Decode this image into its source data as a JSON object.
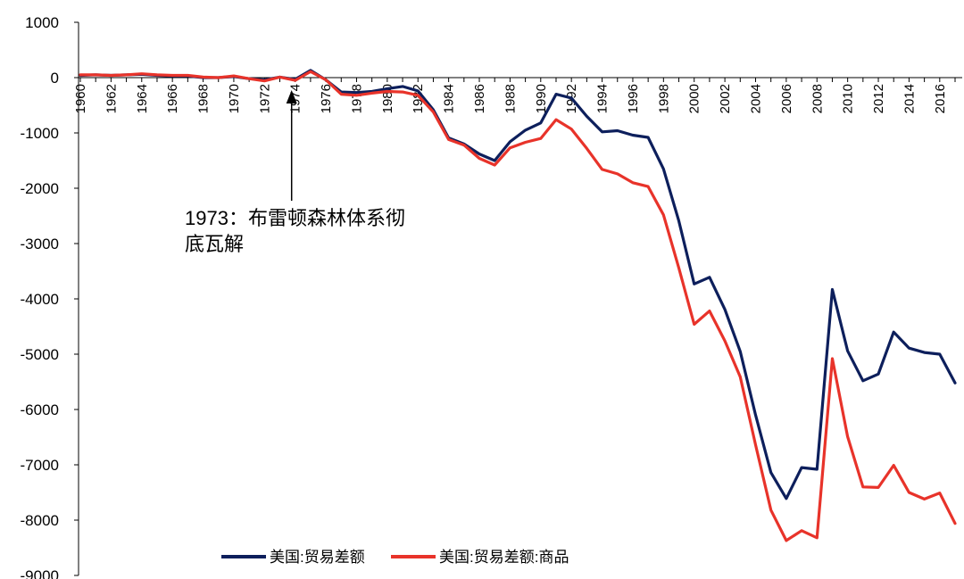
{
  "chart_data": {
    "type": "line",
    "x": [
      1960,
      1961,
      1962,
      1963,
      1964,
      1965,
      1966,
      1967,
      1968,
      1969,
      1970,
      1971,
      1972,
      1973,
      1974,
      1975,
      1976,
      1977,
      1978,
      1979,
      1980,
      1981,
      1982,
      1983,
      1984,
      1985,
      1986,
      1987,
      1988,
      1989,
      1990,
      1991,
      1992,
      1993,
      1994,
      1995,
      1996,
      1997,
      1998,
      1999,
      2000,
      2001,
      2002,
      2003,
      2004,
      2005,
      2006,
      2007,
      2008,
      2009,
      2010,
      2011,
      2012,
      2013,
      2014,
      2015,
      2016,
      2017
    ],
    "x_tick_labels": [
      "1960",
      "1962",
      "1964",
      "1966",
      "1968",
      "1970",
      "1972",
      "1974",
      "1976",
      "1978",
      "1980",
      "1982",
      "1984",
      "1986",
      "1988",
      "1990",
      "1992",
      "1994",
      "1996",
      "1998",
      "2000",
      "2002",
      "2004",
      "2006",
      "2008",
      "2010",
      "2012",
      "2014",
      "2016"
    ],
    "ylim": [
      -9000,
      1000
    ],
    "y_ticks": [
      1000,
      0,
      -1000,
      -2000,
      -3000,
      -4000,
      -5000,
      -6000,
      -7000,
      -8000,
      -9000
    ],
    "y_tick_labels": [
      "1000",
      "0",
      "-1000",
      "-2000",
      "-3000",
      "-4000",
      "-5000",
      "-6000",
      "-7000",
      "-8000",
      "-9000"
    ],
    "grid": false,
    "legend_position": "bottom",
    "series": [
      {
        "name": "美国:贸易差额",
        "color": "#0d1f5c",
        "values": [
          40,
          50,
          40,
          50,
          60,
          40,
          30,
          30,
          0,
          0,
          20,
          -20,
          -40,
          10,
          -30,
          130,
          -40,
          -260,
          -270,
          -250,
          -200,
          -160,
          -240,
          -580,
          -1090,
          -1200,
          -1380,
          -1500,
          -1160,
          -950,
          -820,
          -300,
          -370,
          -700,
          -980,
          -960,
          -1040,
          -1080,
          -1650,
          -2590,
          -3730,
          -3610,
          -4190,
          -4950,
          -6100,
          -7140,
          -7610,
          -7050,
          -7080,
          -3830,
          -4940,
          -5480,
          -5360,
          -4600,
          -4890,
          -4970,
          -5000,
          -5520
        ]
      },
      {
        "name": "美国:贸易差额:商品",
        "color": "#e8332a",
        "values": [
          50,
          50,
          40,
          50,
          70,
          50,
          40,
          40,
          10,
          0,
          30,
          -20,
          -60,
          10,
          -50,
          110,
          -40,
          -300,
          -320,
          -280,
          -250,
          -260,
          -320,
          -620,
          -1120,
          -1220,
          -1460,
          -1580,
          -1270,
          -1170,
          -1100,
          -760,
          -930,
          -1280,
          -1660,
          -1740,
          -1900,
          -1970,
          -2480,
          -3440,
          -4460,
          -4220,
          -4760,
          -5410,
          -6640,
          -7820,
          -8370,
          -8190,
          -8320,
          -5080,
          -6490,
          -7400,
          -7410,
          -7010,
          -7500,
          -7620,
          -7510,
          -8060
        ]
      }
    ],
    "annotation": {
      "line1": "1973：布雷顿森林体系彻",
      "line2": "底瓦解",
      "year": 1974
    }
  }
}
